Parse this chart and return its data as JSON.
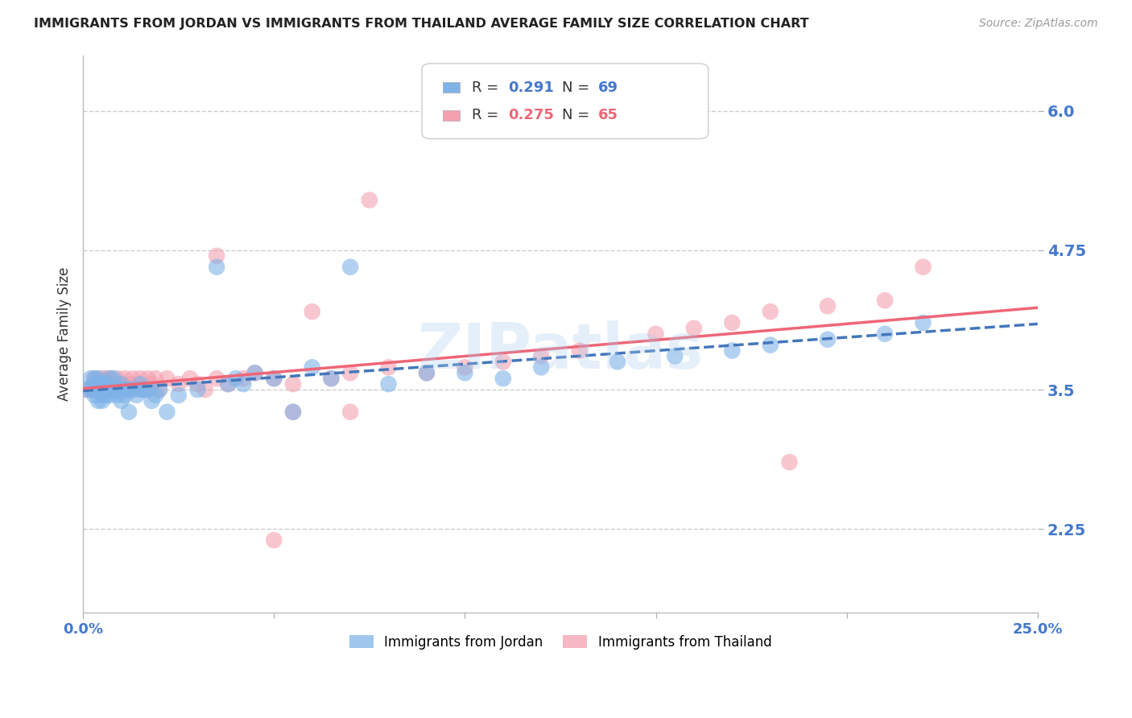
{
  "title": "IMMIGRANTS FROM JORDAN VS IMMIGRANTS FROM THAILAND AVERAGE FAMILY SIZE CORRELATION CHART",
  "source": "Source: ZipAtlas.com",
  "ylabel": "Average Family Size",
  "xlim": [
    0.0,
    0.25
  ],
  "ylim": [
    1.5,
    6.5
  ],
  "yticks": [
    2.25,
    3.5,
    4.75,
    6.0
  ],
  "grid_color": "#cccccc",
  "background_color": "#ffffff",
  "jordan_color": "#7fb3e8",
  "thailand_color": "#f4a0b0",
  "jordan_R": "0.291",
  "jordan_N": "69",
  "thailand_R": "0.275",
  "thailand_N": "65",
  "jordan_line_color": "#4477bb",
  "thailand_line_color": "#ee6677",
  "axis_label_color": "#4477cc",
  "watermark": "ZIPatlas",
  "jordan_x": [
    0.001,
    0.002,
    0.002,
    0.003,
    0.003,
    0.003,
    0.003,
    0.004,
    0.004,
    0.004,
    0.004,
    0.004,
    0.005,
    0.005,
    0.005,
    0.005,
    0.005,
    0.006,
    0.006,
    0.006,
    0.007,
    0.007,
    0.007,
    0.008,
    0.008,
    0.008,
    0.009,
    0.009,
    0.01,
    0.01,
    0.01,
    0.011,
    0.011,
    0.012,
    0.012,
    0.013,
    0.014,
    0.015,
    0.015,
    0.016,
    0.017,
    0.018,
    0.019,
    0.02,
    0.022,
    0.025,
    0.03,
    0.035,
    0.038,
    0.04,
    0.042,
    0.045,
    0.05,
    0.055,
    0.06,
    0.065,
    0.07,
    0.08,
    0.09,
    0.1,
    0.11,
    0.12,
    0.14,
    0.155,
    0.17,
    0.18,
    0.195,
    0.21,
    0.22
  ],
  "jordan_y": [
    3.5,
    3.5,
    3.6,
    3.45,
    3.5,
    3.6,
    3.55,
    3.5,
    3.5,
    3.4,
    3.55,
    3.6,
    3.5,
    3.5,
    3.55,
    3.4,
    3.45,
    3.5,
    3.55,
    3.45,
    3.5,
    3.6,
    3.45,
    3.5,
    3.6,
    3.5,
    3.45,
    3.5,
    3.5,
    3.55,
    3.4,
    3.5,
    3.45,
    3.5,
    3.3,
    3.5,
    3.45,
    3.5,
    3.55,
    3.5,
    3.5,
    3.4,
    3.45,
    3.5,
    3.3,
    3.45,
    3.5,
    4.6,
    3.55,
    3.6,
    3.55,
    3.65,
    3.6,
    3.3,
    3.7,
    3.6,
    4.6,
    3.55,
    3.65,
    3.65,
    3.6,
    3.7,
    3.75,
    3.8,
    3.85,
    3.9,
    3.95,
    4.0,
    4.1
  ],
  "thailand_x": [
    0.001,
    0.002,
    0.003,
    0.003,
    0.004,
    0.004,
    0.005,
    0.005,
    0.005,
    0.006,
    0.006,
    0.006,
    0.007,
    0.007,
    0.008,
    0.008,
    0.009,
    0.009,
    0.01,
    0.01,
    0.011,
    0.011,
    0.012,
    0.013,
    0.013,
    0.014,
    0.015,
    0.016,
    0.017,
    0.018,
    0.019,
    0.02,
    0.022,
    0.025,
    0.028,
    0.03,
    0.032,
    0.035,
    0.038,
    0.042,
    0.045,
    0.05,
    0.055,
    0.06,
    0.065,
    0.07,
    0.08,
    0.09,
    0.1,
    0.11,
    0.12,
    0.13,
    0.075,
    0.15,
    0.16,
    0.17,
    0.18,
    0.195,
    0.21,
    0.22,
    0.035,
    0.055,
    0.07,
    0.185,
    0.05
  ],
  "thailand_y": [
    3.5,
    3.5,
    3.5,
    3.6,
    3.5,
    3.55,
    3.5,
    3.6,
    3.55,
    3.5,
    3.6,
    3.55,
    3.5,
    3.6,
    3.5,
    3.55,
    3.5,
    3.6,
    3.5,
    3.55,
    3.5,
    3.6,
    3.55,
    3.5,
    3.6,
    3.55,
    3.6,
    3.5,
    3.6,
    3.55,
    3.6,
    3.5,
    3.6,
    3.55,
    3.6,
    3.55,
    3.5,
    3.6,
    3.55,
    3.6,
    3.65,
    3.6,
    3.55,
    4.2,
    3.6,
    3.65,
    3.7,
    3.65,
    3.7,
    3.75,
    3.8,
    3.85,
    5.2,
    4.0,
    4.05,
    4.1,
    4.2,
    4.25,
    4.3,
    4.6,
    4.7,
    3.3,
    3.3,
    2.85,
    2.15
  ]
}
